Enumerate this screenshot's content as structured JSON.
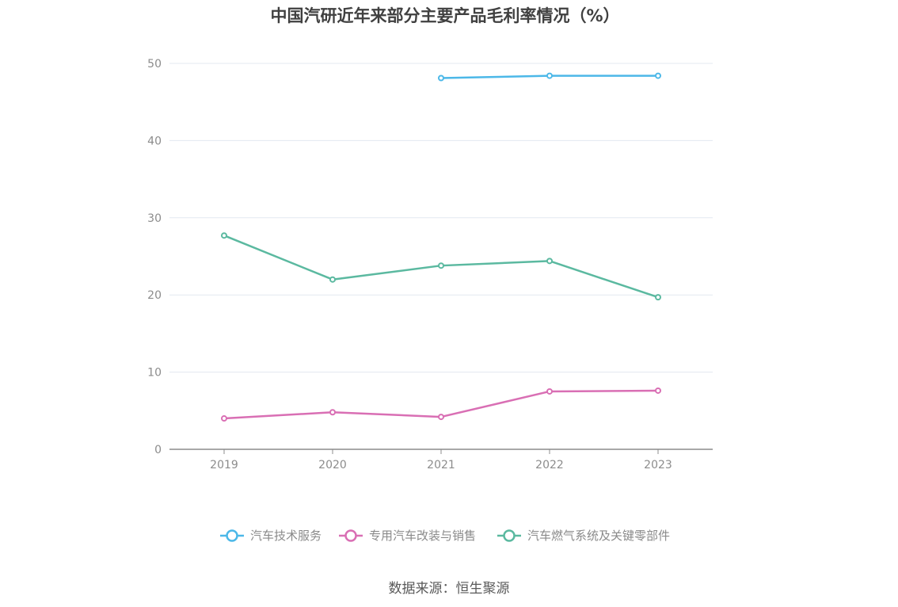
{
  "title": "中国汽研近年来部分主要产品毛利率情况（%）",
  "source": "数据来源：恒生聚源",
  "chart_data": {
    "type": "line",
    "title": "中国汽研近年来部分主要产品毛利率情况（%）",
    "categories": [
      "2019",
      "2020",
      "2021",
      "2022",
      "2023"
    ],
    "ylim": [
      0,
      50
    ],
    "yticks": [
      "0",
      "10",
      "20",
      "30",
      "40",
      "50"
    ],
    "grid": true,
    "legend_position": "bottom",
    "series": [
      {
        "name": "汽车技术服务",
        "color": "#4cb8e8",
        "values": [
          null,
          null,
          48.1,
          48.4,
          48.4
        ]
      },
      {
        "name": "专用汽车改装与销售",
        "color": "#d96fb4",
        "values": [
          4.0,
          4.8,
          4.2,
          7.5,
          7.6
        ]
      },
      {
        "name": "汽车燃气系统及关键零部件",
        "color": "#5bb9a0",
        "values": [
          27.7,
          22.0,
          23.8,
          24.4,
          19.7
        ]
      }
    ]
  }
}
